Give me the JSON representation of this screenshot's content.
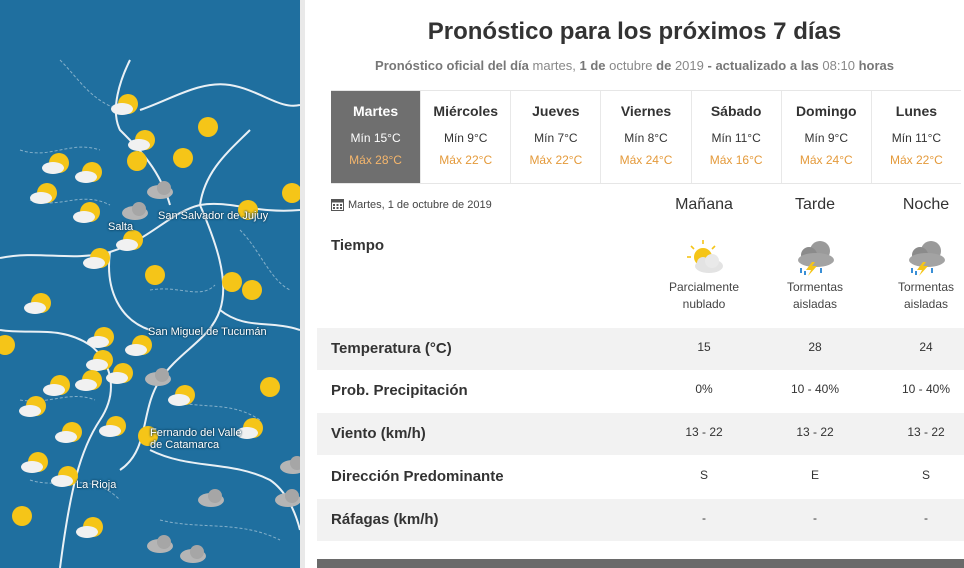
{
  "map": {
    "cities": [
      "Salta",
      "San Salvador de Jujuy",
      "San Miguel de Tucumán",
      "Fernando del Valle de Catamarca",
      "La Rioja"
    ]
  },
  "forecast": {
    "title": "Pronóstico para los próximos 7 días",
    "subtitle": {
      "prefix": "Pronóstico oficial del día",
      "day_text": "martes,",
      "day_num": "1",
      "de1": "de",
      "month": "octubre",
      "de2": "de",
      "year": "2019",
      "updated_label": "- actualizado a las",
      "time": "08:10",
      "hours": "horas"
    },
    "days": [
      {
        "name": "Martes",
        "min": "Mín 15°C",
        "max": "Máx 28°C",
        "active": true
      },
      {
        "name": "Miércoles",
        "min": "Mín 9°C",
        "max": "Máx 22°C"
      },
      {
        "name": "Jueves",
        "min": "Mín 7°C",
        "max": "Máx 22°C"
      },
      {
        "name": "Viernes",
        "min": "Mín 8°C",
        "max": "Máx 24°C"
      },
      {
        "name": "Sábado",
        "min": "Mín 11°C",
        "max": "Máx 16°C"
      },
      {
        "name": "Domingo",
        "min": "Mín 9°C",
        "max": "Máx 24°C"
      },
      {
        "name": "Lunes",
        "min": "Mín 11°C",
        "max": "Máx 22°C"
      }
    ],
    "detail": {
      "date": "Martes, 1 de octubre de 2019",
      "calendar_icon": "calendar-icon",
      "periods": [
        "Mañana",
        "Tarde",
        "Noche"
      ],
      "tiempo_label": "Tiempo",
      "weather": [
        {
          "icon": "partly-cloudy-icon",
          "line1": "Parcialmente",
          "line2": "nublado"
        },
        {
          "icon": "thunderstorm-icon",
          "line1": "Tormentas",
          "line2": "aisladas"
        },
        {
          "icon": "thunderstorm-icon",
          "line1": "Tormentas",
          "line2": "aisladas"
        }
      ],
      "rows": [
        {
          "label": "Temperatura (°C)",
          "values": [
            "15",
            "28",
            "24"
          ]
        },
        {
          "label": "Prob. Precipitación",
          "values": [
            "0%",
            "10 - 40%",
            "10 - 40%"
          ]
        },
        {
          "label": "Viento (km/h)",
          "values": [
            "13 - 22",
            "13 - 22",
            "13 - 22"
          ]
        },
        {
          "label": "Dirección Predominante",
          "values": [
            "S",
            "E",
            "S"
          ]
        },
        {
          "label": "Ráfagas (km/h)",
          "values": [
            "-",
            "-",
            "-"
          ]
        }
      ]
    }
  },
  "colors": {
    "map_water": "#1f6f9f",
    "active_tab": "#6f6f6f",
    "max_temp": "#e49a3b",
    "sun": "#f5c518"
  }
}
